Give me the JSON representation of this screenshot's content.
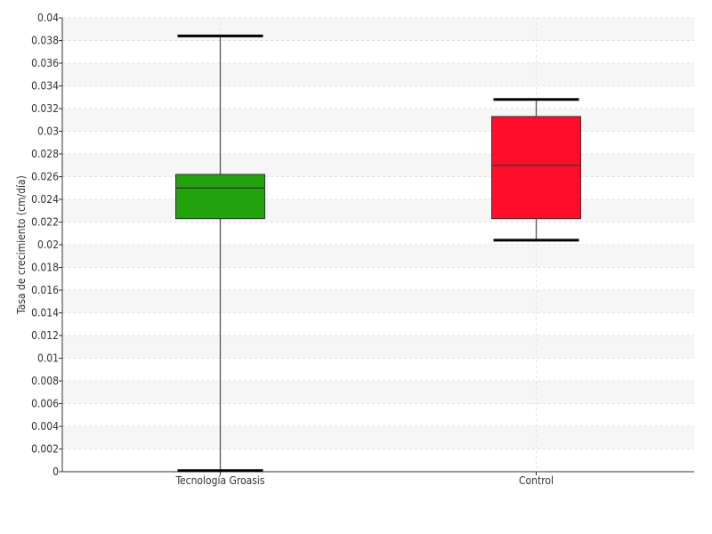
{
  "chart_data": {
    "type": "box",
    "title": "",
    "xlabel": "",
    "ylabel": "Tasa de crecimiento (cm/día)",
    "ylim": [
      0,
      0.04
    ],
    "yticks": [
      "0",
      "0.002",
      "0.004",
      "0.006",
      "0.008",
      "0.01",
      "0.012",
      "0.014",
      "0.016",
      "0.018",
      "0.02",
      "0.022",
      "0.024",
      "0.026",
      "0.028",
      "0.03",
      "0.032",
      "0.034",
      "0.036",
      "0.038",
      "0.04"
    ],
    "grid": true,
    "categories": [
      "Tecnología Groasis",
      "Control"
    ],
    "boxes": [
      {
        "category": "Tecnología Groasis",
        "min": 0.0001,
        "q1": 0.0223,
        "median": 0.025,
        "q3": 0.0262,
        "max": 0.0384,
        "color": "#22a30e"
      },
      {
        "category": "Control",
        "min": 0.0204,
        "q1": 0.0223,
        "median": 0.027,
        "q3": 0.0313,
        "max": 0.0328,
        "color": "#ff0e2a"
      }
    ]
  }
}
